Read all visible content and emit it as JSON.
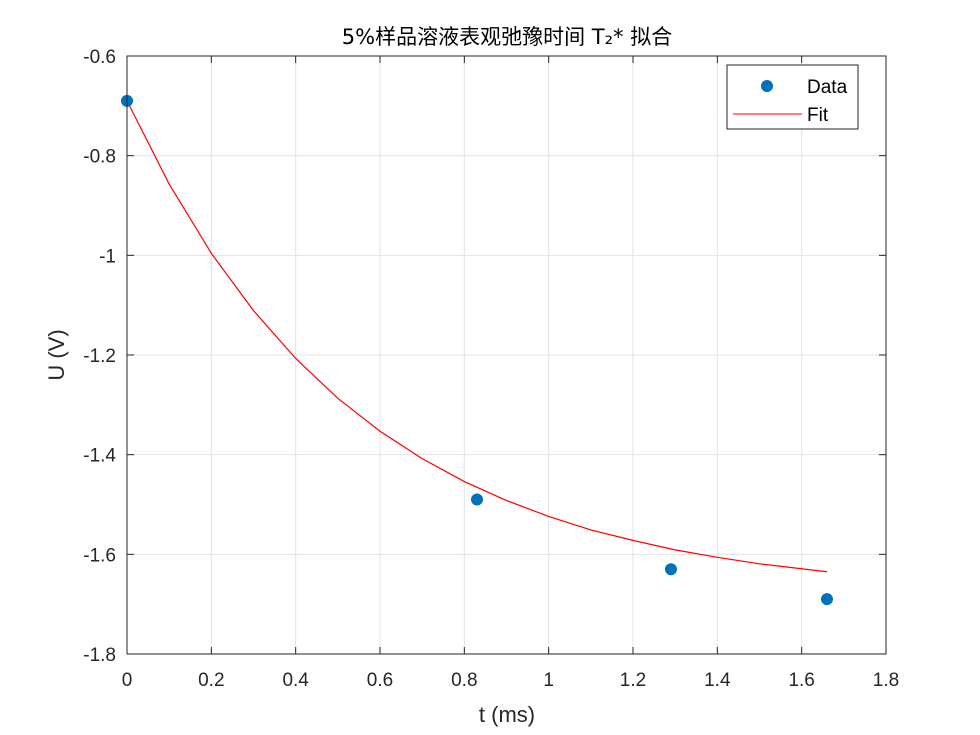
{
  "chart_data": {
    "type": "scatter",
    "title": "5%样品溶液表观弛豫时间 T₂* 拟合",
    "xlabel": "t (ms)",
    "ylabel": "U (V)",
    "xlim": [
      0,
      1.8
    ],
    "ylim": [
      -1.8,
      -0.6
    ],
    "xticks": [
      0,
      0.2,
      0.4,
      0.6,
      0.8,
      1,
      1.2,
      1.4,
      1.6,
      1.8
    ],
    "xtick_labels": [
      "0",
      "0.2",
      "0.4",
      "0.6",
      "0.8",
      "1",
      "1.2",
      "1.4",
      "1.6",
      "1.8"
    ],
    "yticks": [
      -1.8,
      -1.6,
      -1.4,
      -1.2,
      -1,
      -0.8,
      -0.6
    ],
    "ytick_labels": [
      "-1.8",
      "-1.6",
      "-1.4",
      "-1.2",
      "-1",
      "-0.8",
      "-0.6"
    ],
    "grid": true,
    "legend_position": "top-right",
    "series": [
      {
        "name": "Data",
        "kind": "markers",
        "color": "#0072BD",
        "x": [
          0,
          0.83,
          1.29,
          1.66
        ],
        "y": [
          -0.69,
          -1.49,
          -1.63,
          -1.69
        ]
      },
      {
        "name": "Fit",
        "kind": "line",
        "color": "#FF0000",
        "x": [
          0,
          0.1,
          0.2,
          0.3,
          0.4,
          0.5,
          0.6,
          0.7,
          0.8,
          0.9,
          1.0,
          1.1,
          1.2,
          1.3,
          1.4,
          1.5,
          1.6,
          1.66
        ],
        "y": [
          -0.69,
          -0.857,
          -0.996,
          -1.111,
          -1.207,
          -1.287,
          -1.353,
          -1.408,
          -1.454,
          -1.492,
          -1.524,
          -1.551,
          -1.572,
          -1.591,
          -1.606,
          -1.619,
          -1.629,
          -1.635
        ]
      }
    ]
  }
}
